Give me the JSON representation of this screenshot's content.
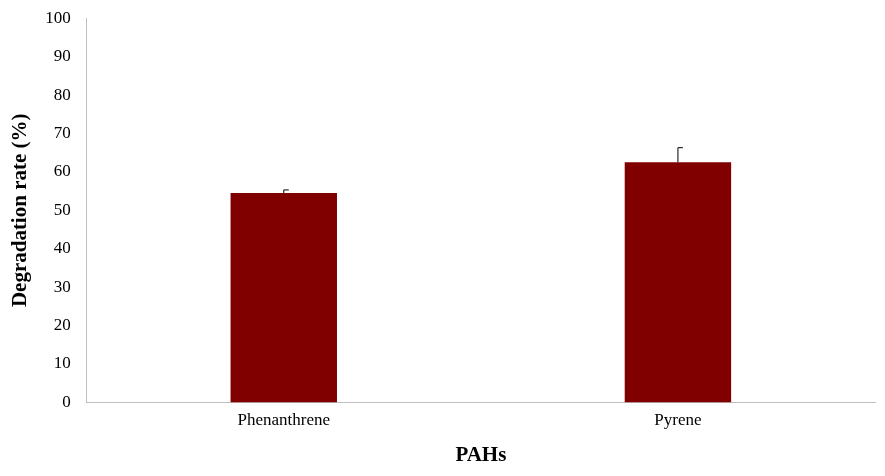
{
  "chart_data": {
    "type": "bar",
    "x_label": "PAHs",
    "y_label": "Degradation rate (%)",
    "categories": [
      "Phenanthrene",
      "Pyrene"
    ],
    "values": [
      54.5,
      62.5
    ],
    "errors": [
      0.8,
      3.8
    ],
    "color": "#800000",
    "ylim": [
      0,
      100
    ],
    "yticks": [
      0,
      10,
      20,
      30,
      40,
      50,
      60,
      70,
      80,
      90,
      100
    ],
    "grid": false
  }
}
